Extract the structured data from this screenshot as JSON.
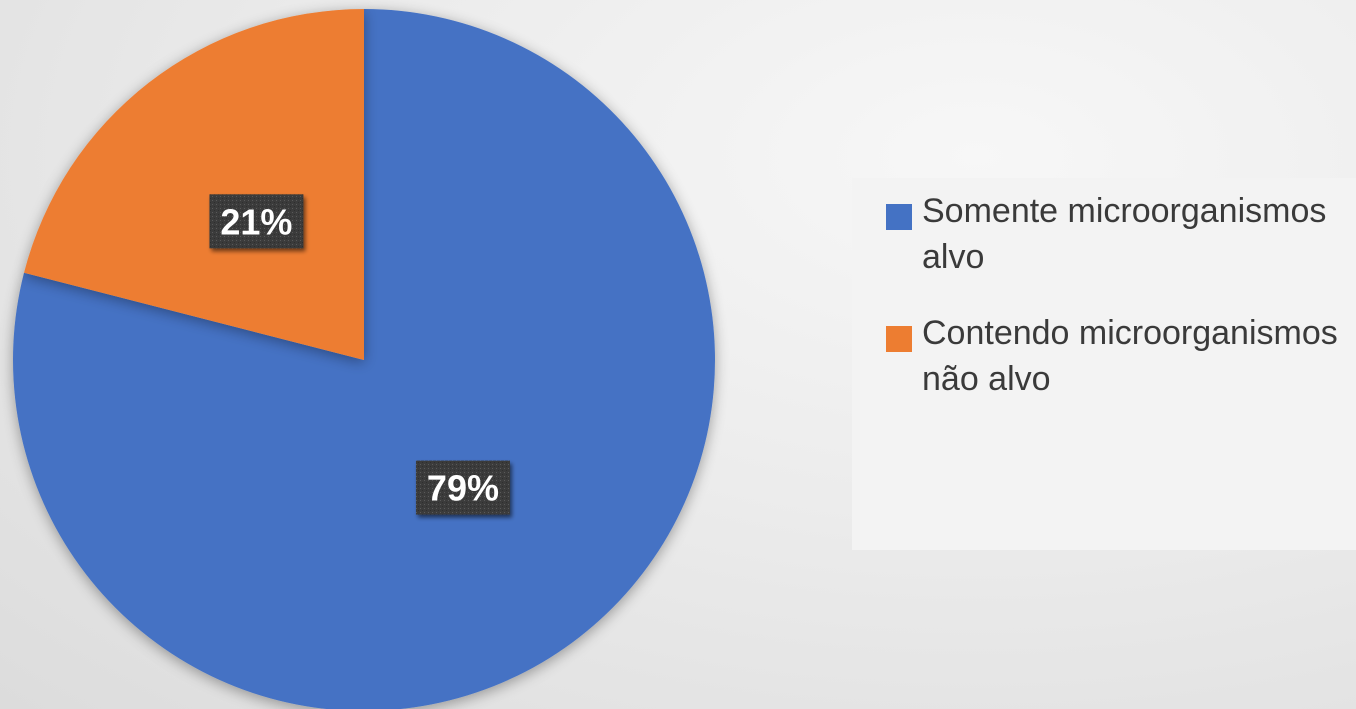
{
  "chart_data": {
    "type": "pie",
    "title": "",
    "start_angle_deg": 0,
    "direction": "clockwise",
    "legend_position": "right",
    "slices": [
      {
        "label": "Somente microorganismos alvo",
        "value": 79,
        "display": "79%",
        "color": "#4472c4"
      },
      {
        "label": "Contendo microorganismos não alvo",
        "value": 21,
        "display": "21%",
        "color": "#ed7d31"
      }
    ]
  },
  "legend": {
    "items": [
      {
        "label": "Somente microorganismos alvo",
        "color": "#4472c4"
      },
      {
        "label": "Contendo microorganismos não alvo",
        "color": "#ed7d31"
      }
    ]
  }
}
